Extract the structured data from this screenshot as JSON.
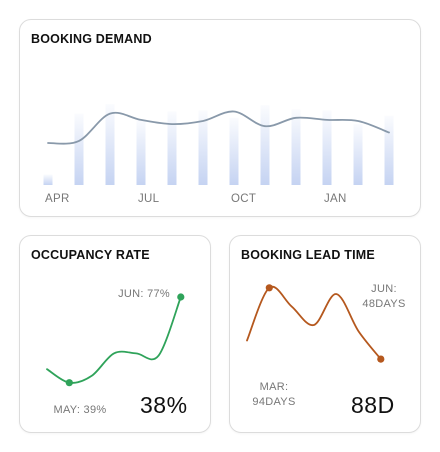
{
  "chart_data": [
    {
      "id": "booking-demand",
      "type": "bar+line",
      "title": "BOOKING DEMAND",
      "categories": [
        "APR",
        "",
        "",
        "JUL",
        "",
        "",
        "OCT",
        "",
        "",
        "JAN",
        "",
        ""
      ],
      "tick_labels": [
        "APR",
        "JUL",
        "OCT",
        "JAN"
      ],
      "bar_values": [
        10,
        68,
        77,
        62,
        70,
        71,
        64,
        76,
        72,
        71,
        58,
        66
      ],
      "line_values": [
        40,
        42,
        68,
        62,
        58,
        61,
        70,
        56,
        64,
        62,
        61,
        50
      ],
      "ylim": [
        0,
        100
      ],
      "bar_color": "#c5d3f2",
      "line_color": "#8999aa"
    },
    {
      "id": "occupancy-rate",
      "type": "line",
      "title": "OCCUPANCY RATE",
      "line_values": [
        45,
        39,
        42,
        52,
        52,
        51,
        77
      ],
      "ylim": [
        30,
        85
      ],
      "line_color": "#2fa35a",
      "annotations": [
        {
          "label": "MAY: 39%",
          "index": 1
        },
        {
          "label": "JUN: 77%",
          "index": 6
        }
      ],
      "big_value": "38%"
    },
    {
      "id": "booking-lead-time",
      "type": "line",
      "title": "BOOKING LEAD TIME",
      "line_values": [
        60,
        94,
        82,
        70,
        90,
        66,
        48
      ],
      "ylim": [
        30,
        110
      ],
      "line_color": "#b5581e",
      "annotations": [
        {
          "label_lines": [
            "MAR:",
            "94DAYS"
          ],
          "index": 1
        },
        {
          "label_lines": [
            "JUN:",
            "48DAYS"
          ],
          "index": 6
        }
      ],
      "big_value": "88D"
    }
  ]
}
